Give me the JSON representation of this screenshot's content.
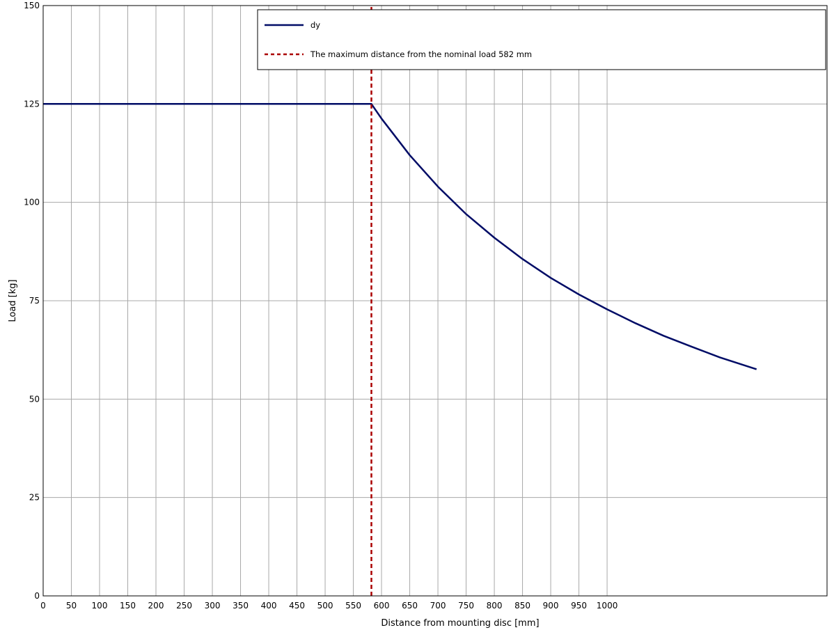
{
  "chart_data": {
    "type": "line",
    "title": "",
    "xlabel": "Distance from mounting disc [mm]",
    "ylabel": "Load [kg]",
    "xlim": [
      0,
      1390
    ],
    "ylim": [
      0,
      150
    ],
    "xticks": [
      0,
      50,
      100,
      150,
      200,
      250,
      300,
      350,
      400,
      450,
      500,
      550,
      600,
      650,
      700,
      750,
      800,
      850,
      900,
      950,
      1000
    ],
    "xtick_labels": [
      "0",
      "50",
      "100",
      "150",
      "200",
      "250",
      "300",
      "350",
      "400",
      "450",
      "500",
      "550",
      "600",
      "650",
      "700",
      "750",
      "800",
      "850",
      "900",
      "950",
      "1000"
    ],
    "yticks": [
      0,
      25,
      50,
      75,
      100,
      125,
      150
    ],
    "ytick_labels": [
      "0",
      "25",
      "50",
      "75",
      "100",
      "125",
      "150"
    ],
    "grid": true,
    "legend_position": "top-center",
    "series": [
      {
        "name": "dy",
        "color": "#000c66",
        "style": "solid",
        "x": [
          0,
          582,
          600,
          650,
          700,
          750,
          800,
          850,
          900,
          950,
          1000,
          1050,
          1100,
          1150,
          1200,
          1265
        ],
        "y": [
          125,
          125,
          121.3,
          112.0,
          104.0,
          97.0,
          91.0,
          85.6,
          80.8,
          76.6,
          72.8,
          69.3,
          66.1,
          63.3,
          60.6,
          57.6
        ]
      },
      {
        "name": "The maximum distance from the nominal load 582 mm",
        "color": "#aa0000",
        "style": "dashed",
        "x": [
          582,
          582
        ],
        "y": [
          0,
          150
        ]
      }
    ]
  }
}
